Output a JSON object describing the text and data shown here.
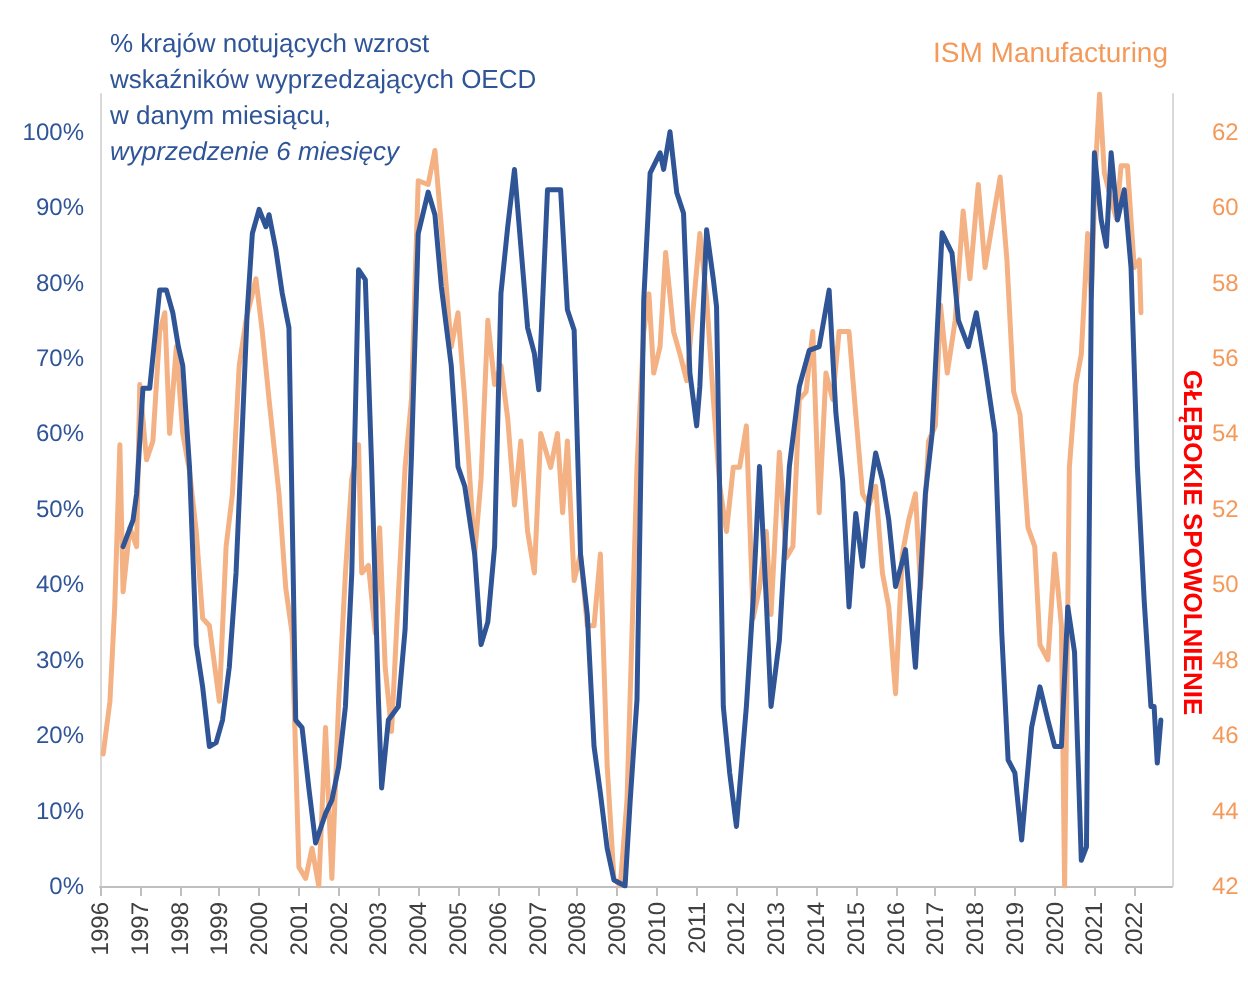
{
  "chart_data": {
    "type": "line",
    "legend": false,
    "grid": false,
    "annotations": [
      "GŁĘBOKIE SPOWOLNIENIE"
    ],
    "xlim": [
      1996,
      2022.95
    ],
    "xticks": [
      1996,
      1997,
      1998,
      1999,
      2000,
      2001,
      2002,
      2003,
      2004,
      2005,
      2006,
      2007,
      2008,
      2009,
      2010,
      2011,
      2012,
      2013,
      2014,
      2015,
      2016,
      2017,
      2018,
      2019,
      2020,
      2021,
      2022
    ],
    "ylim": [
      0,
      105
    ],
    "yticks": [
      {
        "value": 0,
        "label": "0%"
      },
      {
        "value": 10,
        "label": "10%"
      },
      {
        "value": 20,
        "label": "20%"
      },
      {
        "value": 30,
        "label": "30%"
      },
      {
        "value": 40,
        "label": "40%"
      },
      {
        "value": 50,
        "label": "50%"
      },
      {
        "value": 60,
        "label": "60%"
      },
      {
        "value": 70,
        "label": "70%"
      },
      {
        "value": 80,
        "label": "80%"
      },
      {
        "value": 90,
        "label": "90%"
      },
      {
        "value": 100,
        "label": "100%"
      }
    ],
    "y2lim": [
      42,
      63
    ],
    "y2ticks": [
      42,
      44,
      46,
      48,
      50,
      52,
      54,
      56,
      58,
      60,
      62
    ],
    "series": [
      {
        "name": "% krajów notujących wzrost\nwskaźników wyprzedzających OECD\nw danym miesiącu,\nwyprzedzenie 6 miesięcy",
        "color": "#2f5597",
        "x": [
          1996.58,
          1996.83,
          1996.92,
          1997.08,
          1997.25,
          1997.5,
          1997.67,
          1997.83,
          1997.97,
          1998.08,
          1998.25,
          1998.42,
          1998.58,
          1998.75,
          1998.92,
          1999.08,
          1999.25,
          1999.42,
          1999.58,
          1999.7,
          1999.83,
          2000.0,
          2000.17,
          2000.25,
          2000.42,
          2000.58,
          2000.75,
          2000.92,
          2001.08,
          2001.25,
          2001.42,
          2001.67,
          2001.83,
          2002.0,
          2002.17,
          2002.33,
          2002.5,
          2002.67,
          2002.83,
          2003.0,
          2003.08,
          2003.25,
          2003.5,
          2003.67,
          2003.83,
          2004.0,
          2004.25,
          2004.42,
          2004.58,
          2004.83,
          2005.0,
          2005.17,
          2005.42,
          2005.58,
          2005.75,
          2005.92,
          2006.08,
          2006.25,
          2006.42,
          2006.58,
          2006.75,
          2006.92,
          2007.03,
          2007.25,
          2007.58,
          2007.75,
          2007.92,
          2008.08,
          2008.25,
          2008.42,
          2008.58,
          2008.75,
          2008.92,
          2009.2,
          2009.33,
          2009.5,
          2009.67,
          2009.83,
          2010.08,
          2010.17,
          2010.33,
          2010.5,
          2010.67,
          2010.83,
          2011.0,
          2011.08,
          2011.25,
          2011.42,
          2011.5,
          2011.67,
          2011.83,
          2012.0,
          2012.25,
          2012.42,
          2012.58,
          2012.75,
          2012.87,
          2013.08,
          2013.33,
          2013.58,
          2013.83,
          2014.08,
          2014.33,
          2014.5,
          2014.67,
          2014.83,
          2015.0,
          2015.17,
          2015.33,
          2015.5,
          2015.67,
          2015.83,
          2016.0,
          2016.25,
          2016.5,
          2016.75,
          2016.92,
          2017.17,
          2017.42,
          2017.58,
          2017.83,
          2018.03,
          2018.25,
          2018.5,
          2018.67,
          2018.83,
          2019.0,
          2019.17,
          2019.42,
          2019.63,
          2019.83,
          2020.0,
          2020.17,
          2020.33,
          2020.5,
          2020.67,
          2020.8,
          2020.92,
          2021.0,
          2021.17,
          2021.3,
          2021.42,
          2021.58,
          2021.75,
          2021.92,
          2022.08,
          2022.25,
          2022.42,
          2022.5,
          2022.58,
          2022.67
        ],
        "values": [
          45,
          48.5,
          52,
          66,
          66,
          79,
          79,
          76,
          71.5,
          69,
          55.6,
          32,
          26.4,
          18.5,
          19,
          22,
          29,
          41.5,
          61,
          76,
          86.5,
          89.7,
          87.4,
          89,
          84.4,
          78.6,
          74,
          22,
          21,
          13,
          5.7,
          9.6,
          11.4,
          15.8,
          23.8,
          41.5,
          81.7,
          80.4,
          55.6,
          24.7,
          13,
          22,
          23.8,
          34,
          57,
          86.5,
          92,
          89,
          79.5,
          69,
          55.6,
          53,
          44,
          32,
          35,
          45,
          78.6,
          87.4,
          95,
          84.8,
          74,
          70.6,
          65.8,
          92.3,
          92.3,
          76.4,
          73.7,
          44,
          36,
          18.5,
          12.3,
          5,
          0.8,
          0,
          11.4,
          24.7,
          77.7,
          94.5,
          97.2,
          95,
          100,
          91.9,
          89.2,
          68,
          61,
          66.2,
          87,
          80.4,
          76.8,
          23.8,
          15,
          7.9,
          23.8,
          37.9,
          55.6,
          37.9,
          23.8,
          32.6,
          55.6,
          66.2,
          71,
          71.5,
          79,
          62.7,
          53.8,
          37,
          49.4,
          42.4,
          51.2,
          57.4,
          53.8,
          48.5,
          39.7,
          44.6,
          29,
          52,
          60,
          86.6,
          83.9,
          75,
          71.5,
          76,
          69,
          60,
          33.5,
          16.7,
          15,
          6.1,
          21,
          26.4,
          22,
          18.5,
          18.5,
          37,
          31,
          3.4,
          5.2,
          77.7,
          97.2,
          88.3,
          84.8,
          97.2,
          88.3,
          92.3,
          82,
          55.6,
          37.9,
          23.8,
          23.8,
          16.3,
          22
        ]
      },
      {
        "name": "ISM Manufacturing",
        "color": "#f4b183",
        "axis": "y2",
        "x": [
          1996.08,
          1996.25,
          1996.37,
          1996.5,
          1996.58,
          1996.75,
          1996.92,
          1997.0,
          1997.17,
          1997.33,
          1997.5,
          1997.63,
          1997.75,
          1997.92,
          1998.08,
          1998.25,
          1998.42,
          1998.58,
          1998.75,
          1999.0,
          1999.17,
          1999.33,
          1999.5,
          1999.67,
          1999.92,
          2000.08,
          2000.25,
          2000.5,
          2000.67,
          2000.83,
          2001.0,
          2001.17,
          2001.33,
          2001.5,
          2001.67,
          2001.83,
          2002.0,
          2002.17,
          2002.33,
          2002.5,
          2002.58,
          2002.75,
          2002.92,
          2003.03,
          2003.17,
          2003.33,
          2003.47,
          2003.67,
          2003.83,
          2004.0,
          2004.25,
          2004.42,
          2004.58,
          2004.83,
          2005.0,
          2005.17,
          2005.42,
          2005.58,
          2005.75,
          2005.92,
          2006.08,
          2006.25,
          2006.42,
          2006.58,
          2006.75,
          2006.92,
          2007.08,
          2007.33,
          2007.5,
          2007.63,
          2007.75,
          2007.92,
          2008.08,
          2008.25,
          2008.42,
          2008.58,
          2008.75,
          2008.92,
          2009.08,
          2009.25,
          2009.5,
          2009.67,
          2009.8,
          2009.92,
          2010.08,
          2010.22,
          2010.42,
          2010.58,
          2010.75,
          2010.92,
          2011.08,
          2011.25,
          2011.42,
          2011.58,
          2011.75,
          2011.92,
          2012.08,
          2012.25,
          2012.42,
          2012.58,
          2012.75,
          2012.87,
          2013.08,
          2013.25,
          2013.42,
          2013.58,
          2013.75,
          2013.92,
          2014.08,
          2014.25,
          2014.42,
          2014.58,
          2014.83,
          2015.0,
          2015.17,
          2015.33,
          2015.5,
          2015.67,
          2015.83,
          2016.0,
          2016.17,
          2016.33,
          2016.5,
          2016.63,
          2016.83,
          2017.0,
          2017.13,
          2017.3,
          2017.5,
          2017.7,
          2017.87,
          2018.08,
          2018.25,
          2018.5,
          2018.63,
          2018.8,
          2018.97,
          2019.13,
          2019.33,
          2019.5,
          2019.63,
          2019.83,
          2020.0,
          2020.17,
          2020.25,
          2020.37,
          2020.53,
          2020.67,
          2020.83,
          2020.92,
          2021.03,
          2021.13,
          2021.25,
          2021.42,
          2021.55,
          2021.67,
          2021.83,
          2022.0,
          2022.13,
          2022.17
        ],
        "values": [
          45.5,
          46.9,
          49.4,
          53.7,
          49.8,
          51.5,
          51,
          55.3,
          53.3,
          53.8,
          56.7,
          57.2,
          54,
          56.3,
          54,
          53,
          51.4,
          49.1,
          48.9,
          46.9,
          51,
          52.4,
          55.8,
          57,
          58.1,
          56.7,
          54.9,
          52.4,
          49.9,
          48.7,
          42.5,
          42.2,
          43,
          42,
          46.2,
          42.2,
          46.9,
          50.3,
          52.8,
          53.7,
          50.3,
          50.5,
          48.7,
          51.5,
          47.8,
          46.1,
          49.1,
          53.1,
          54.9,
          60.7,
          60.6,
          61.5,
          59.5,
          56.3,
          57.2,
          54.9,
          50.8,
          52.8,
          57,
          55.3,
          55.8,
          54.4,
          52.1,
          53.8,
          51.4,
          50.3,
          54,
          53.1,
          54,
          51.9,
          53.8,
          50.1,
          50.8,
          48.9,
          48.9,
          50.8,
          45.2,
          42.2,
          42,
          44.3,
          53.1,
          56.7,
          57.7,
          55.6,
          56.3,
          58.8,
          56.7,
          56.1,
          55.4,
          57.4,
          59.3,
          57.6,
          54.9,
          52.6,
          51.4,
          53.1,
          53.1,
          54.2,
          49.1,
          49.9,
          51.4,
          49.2,
          53.5,
          50.7,
          51,
          54.9,
          55.1,
          56.7,
          51.9,
          55.6,
          54.9,
          56.7,
          56.7,
          54.5,
          52.4,
          52.1,
          52.6,
          50.3,
          49.4,
          47.1,
          50.8,
          51.7,
          52.4,
          49.9,
          53.8,
          54.2,
          57.4,
          55.6,
          57,
          59.9,
          58.1,
          60.6,
          58.4,
          60,
          60.8,
          58.6,
          55.1,
          54.5,
          51.5,
          51,
          48.4,
          48,
          50.8,
          48.9,
          42,
          53.1,
          55.3,
          56.1,
          59.3,
          57.6,
          61.1,
          63,
          60.9,
          60.2,
          59.7,
          61.1,
          61.1,
          58.4,
          58.6,
          57.2
        ]
      }
    ]
  }
}
